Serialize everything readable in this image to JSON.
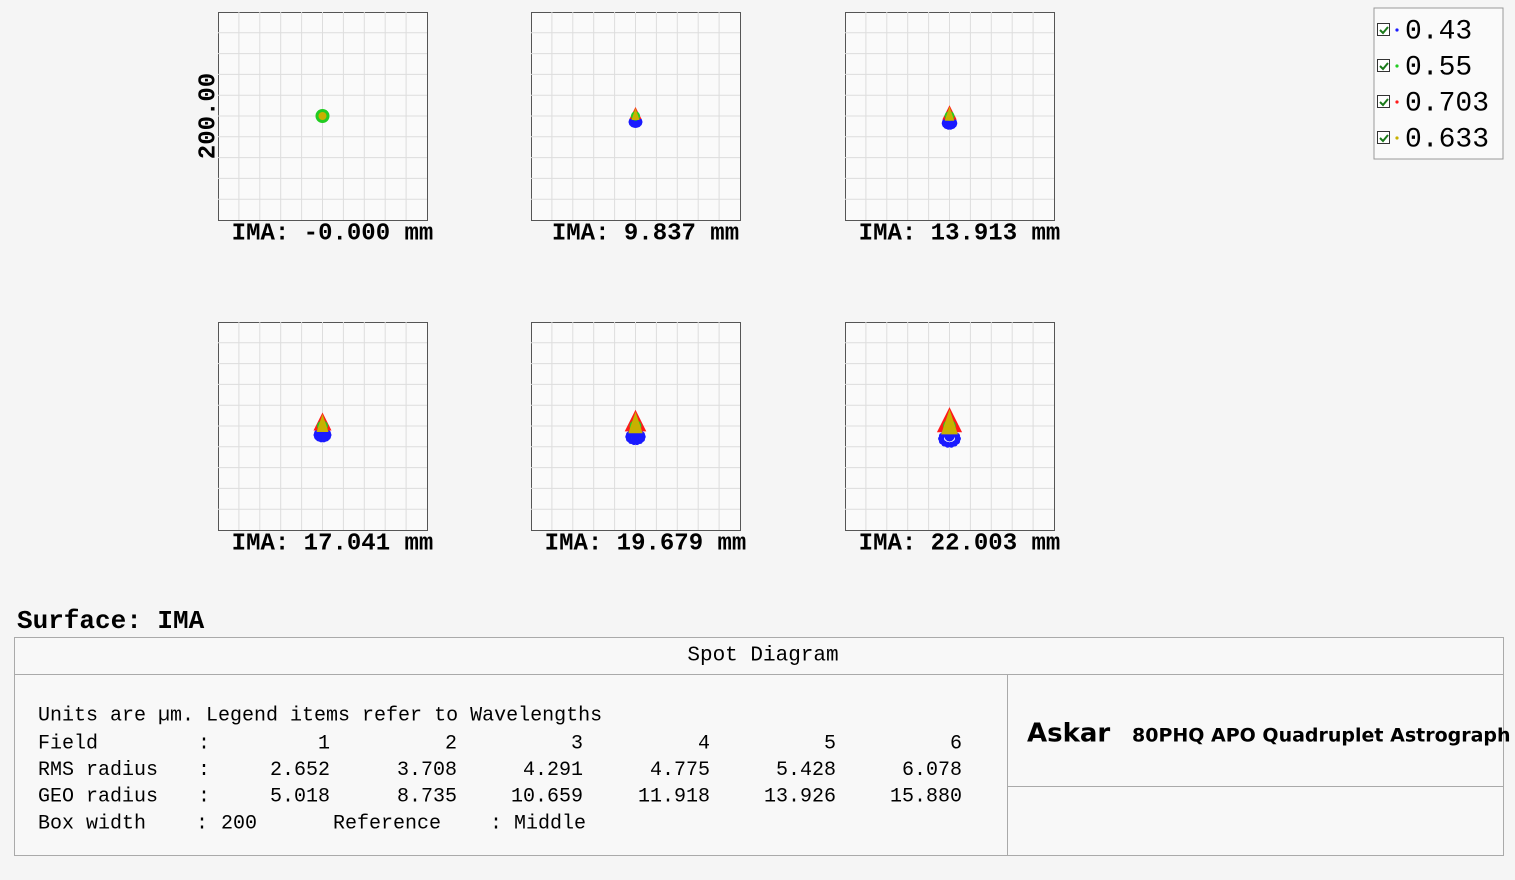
{
  "plots": {
    "axis_label": "200.00",
    "panels": [
      {
        "label": "IMA: -0.000 mm"
      },
      {
        "label": "IMA: 9.837 mm"
      },
      {
        "label": "IMA: 13.913 mm"
      },
      {
        "label": "IMA: 17.041 mm"
      },
      {
        "label": "IMA: 19.679 mm"
      },
      {
        "label": "IMA: 22.003 mm"
      }
    ]
  },
  "legend": [
    {
      "label": "0.43",
      "color": "#1a1aff"
    },
    {
      "label": "0.55",
      "color": "#22cc22"
    },
    {
      "label": "0.703",
      "color": "#ff1a1a"
    },
    {
      "label": "0.633",
      "color": "#c8b000"
    }
  ],
  "surface": "Surface: IMA",
  "footer": {
    "title": "Spot Diagram",
    "note": "Units are µm. Legend items refer to Wavelengths",
    "rows": [
      [
        "Field",
        ":",
        "1",
        "2",
        "3",
        "4",
        "5",
        "6"
      ],
      [
        "RMS radius",
        ":",
        "2.652",
        "3.708",
        "4.291",
        "4.775",
        "5.428",
        "6.078"
      ],
      [
        "GEO radius",
        ":",
        "5.018",
        "8.735",
        "10.659",
        "11.918",
        "13.926",
        "15.880"
      ]
    ],
    "box_row": [
      "Box width",
      ":",
      "200",
      "Reference",
      ":",
      "Middle"
    ],
    "logo": "Askar",
    "product": "80PHQ APO Quadruplet Astrograph"
  }
}
